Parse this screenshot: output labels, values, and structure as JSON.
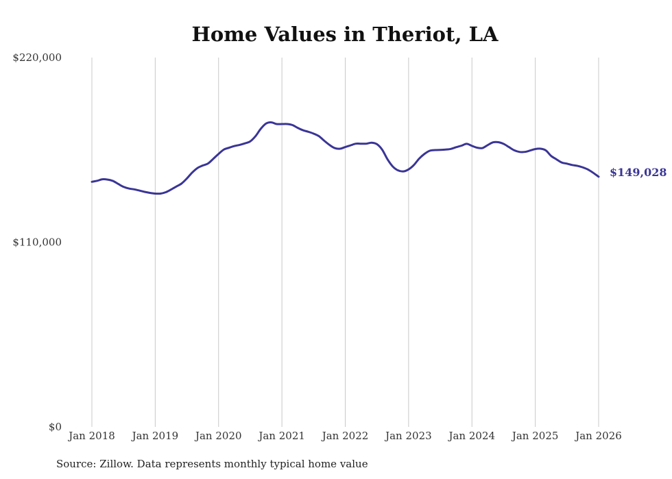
{
  "chart_data": {
    "type": "line",
    "title": "Home Values in Theriot, LA",
    "xlabel": "",
    "ylabel": "",
    "ylim": [
      0,
      220000
    ],
    "y_ticks": [
      {
        "value": 0,
        "label": "$0"
      },
      {
        "value": 110000,
        "label": "$110,000"
      },
      {
        "value": 220000,
        "label": "$220,000"
      }
    ],
    "x_ticks": [
      {
        "year": 2018,
        "label": "Jan 2018"
      },
      {
        "year": 2019,
        "label": "Jan 2019"
      },
      {
        "year": 2020,
        "label": "Jan 2020"
      },
      {
        "year": 2021,
        "label": "Jan 2021"
      },
      {
        "year": 2022,
        "label": "Jan 2022"
      },
      {
        "year": 2023,
        "label": "Jan 2023"
      },
      {
        "year": 2024,
        "label": "Jan 2024"
      },
      {
        "year": 2025,
        "label": "Jan 2025"
      },
      {
        "year": 2026,
        "label": "Jan 2026"
      }
    ],
    "grid": {
      "vertical": true,
      "horizontal": false
    },
    "series": [
      {
        "name": "Typical home value",
        "color": "#3a3596",
        "start": "Jan 2018",
        "frequency": "monthly",
        "values": [
          146000,
          146600,
          147500,
          147300,
          146500,
          144700,
          143000,
          142000,
          141500,
          140800,
          140000,
          139400,
          139000,
          139000,
          139800,
          141400,
          143200,
          145000,
          148000,
          151500,
          154200,
          155700,
          156900,
          159700,
          162600,
          165200,
          166300,
          167300,
          168000,
          168900,
          170100,
          173200,
          177600,
          180700,
          181400,
          180400,
          180400,
          180400,
          179800,
          178100,
          176700,
          175800,
          174700,
          173200,
          170500,
          168000,
          166100,
          165700,
          166700,
          167700,
          168700,
          168700,
          168700,
          169300,
          168400,
          165100,
          159400,
          155100,
          152800,
          152200,
          153400,
          156000,
          159800,
          162600,
          164500,
          164900,
          165000,
          165200,
          165600,
          166600,
          167500,
          168600,
          167400,
          166300,
          166100,
          167900,
          169500,
          169600,
          168600,
          166700,
          164800,
          163800,
          163800,
          164600,
          165500,
          165700,
          164700,
          161400,
          159400,
          157500,
          156800,
          156000,
          155500,
          154600,
          153300,
          151300,
          149028
        ]
      }
    ],
    "annotations": [
      {
        "label": "$149,028",
        "value": 149028,
        "at": "Jan 2026"
      }
    ]
  },
  "footer": {
    "source_text": "Source: Zillow. Data represents monthly typical home value"
  }
}
